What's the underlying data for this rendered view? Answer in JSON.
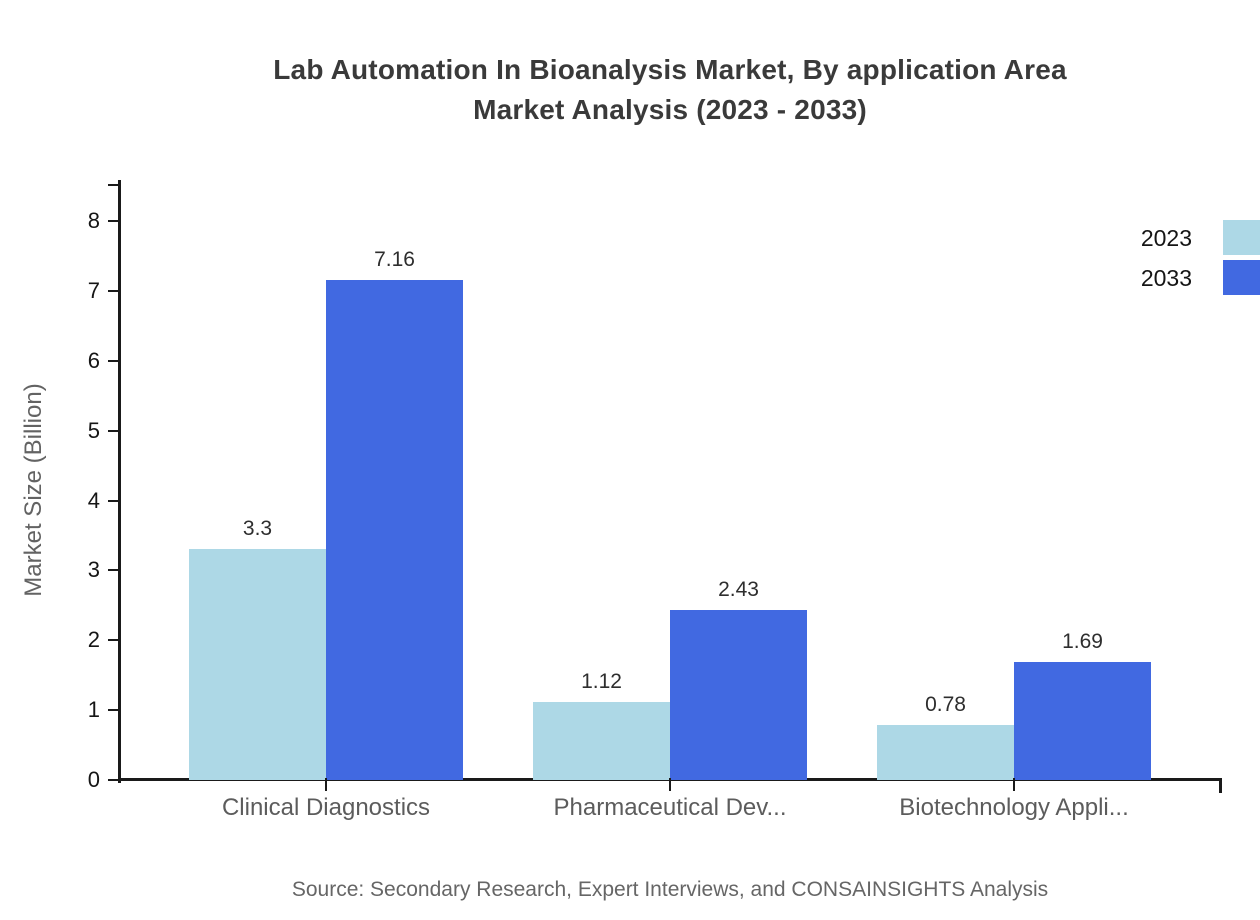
{
  "title": {
    "line1": "Lab Automation In Bioanalysis Market, By application Area",
    "line2": "Market Analysis (2023 - 2033)"
  },
  "source": "Source: Secondary Research, Expert Interviews, and CONSAINSIGHTS Analysis",
  "colors": {
    "series_2023": "#ADD8E6",
    "series_2033": "#4169E1",
    "axis": "#1a1a1a",
    "title_text": "#3a3a3a",
    "muted_text": "#5c5c5c"
  },
  "chart_data": {
    "type": "bar",
    "title": "Lab Automation In Bioanalysis Market, By application Area Market Analysis (2023 - 2033)",
    "categories": [
      "Clinical Diagnostics",
      "Pharmaceutical Dev...",
      "Biotechnology Appli..."
    ],
    "series": [
      {
        "name": "2023",
        "color": "#ADD8E6",
        "values": [
          3.3,
          1.12,
          0.78
        ]
      },
      {
        "name": "2033",
        "color": "#4169E1",
        "values": [
          7.16,
          2.43,
          1.69
        ]
      }
    ],
    "xlabel": "",
    "ylabel": "Market Size (Billion)",
    "ylim": [
      0,
      8
    ],
    "yticks": [
      0,
      1,
      2,
      3,
      4,
      5,
      6,
      7,
      8
    ],
    "grid": false,
    "legend_position": "top-right",
    "bar_value_labels": true
  }
}
